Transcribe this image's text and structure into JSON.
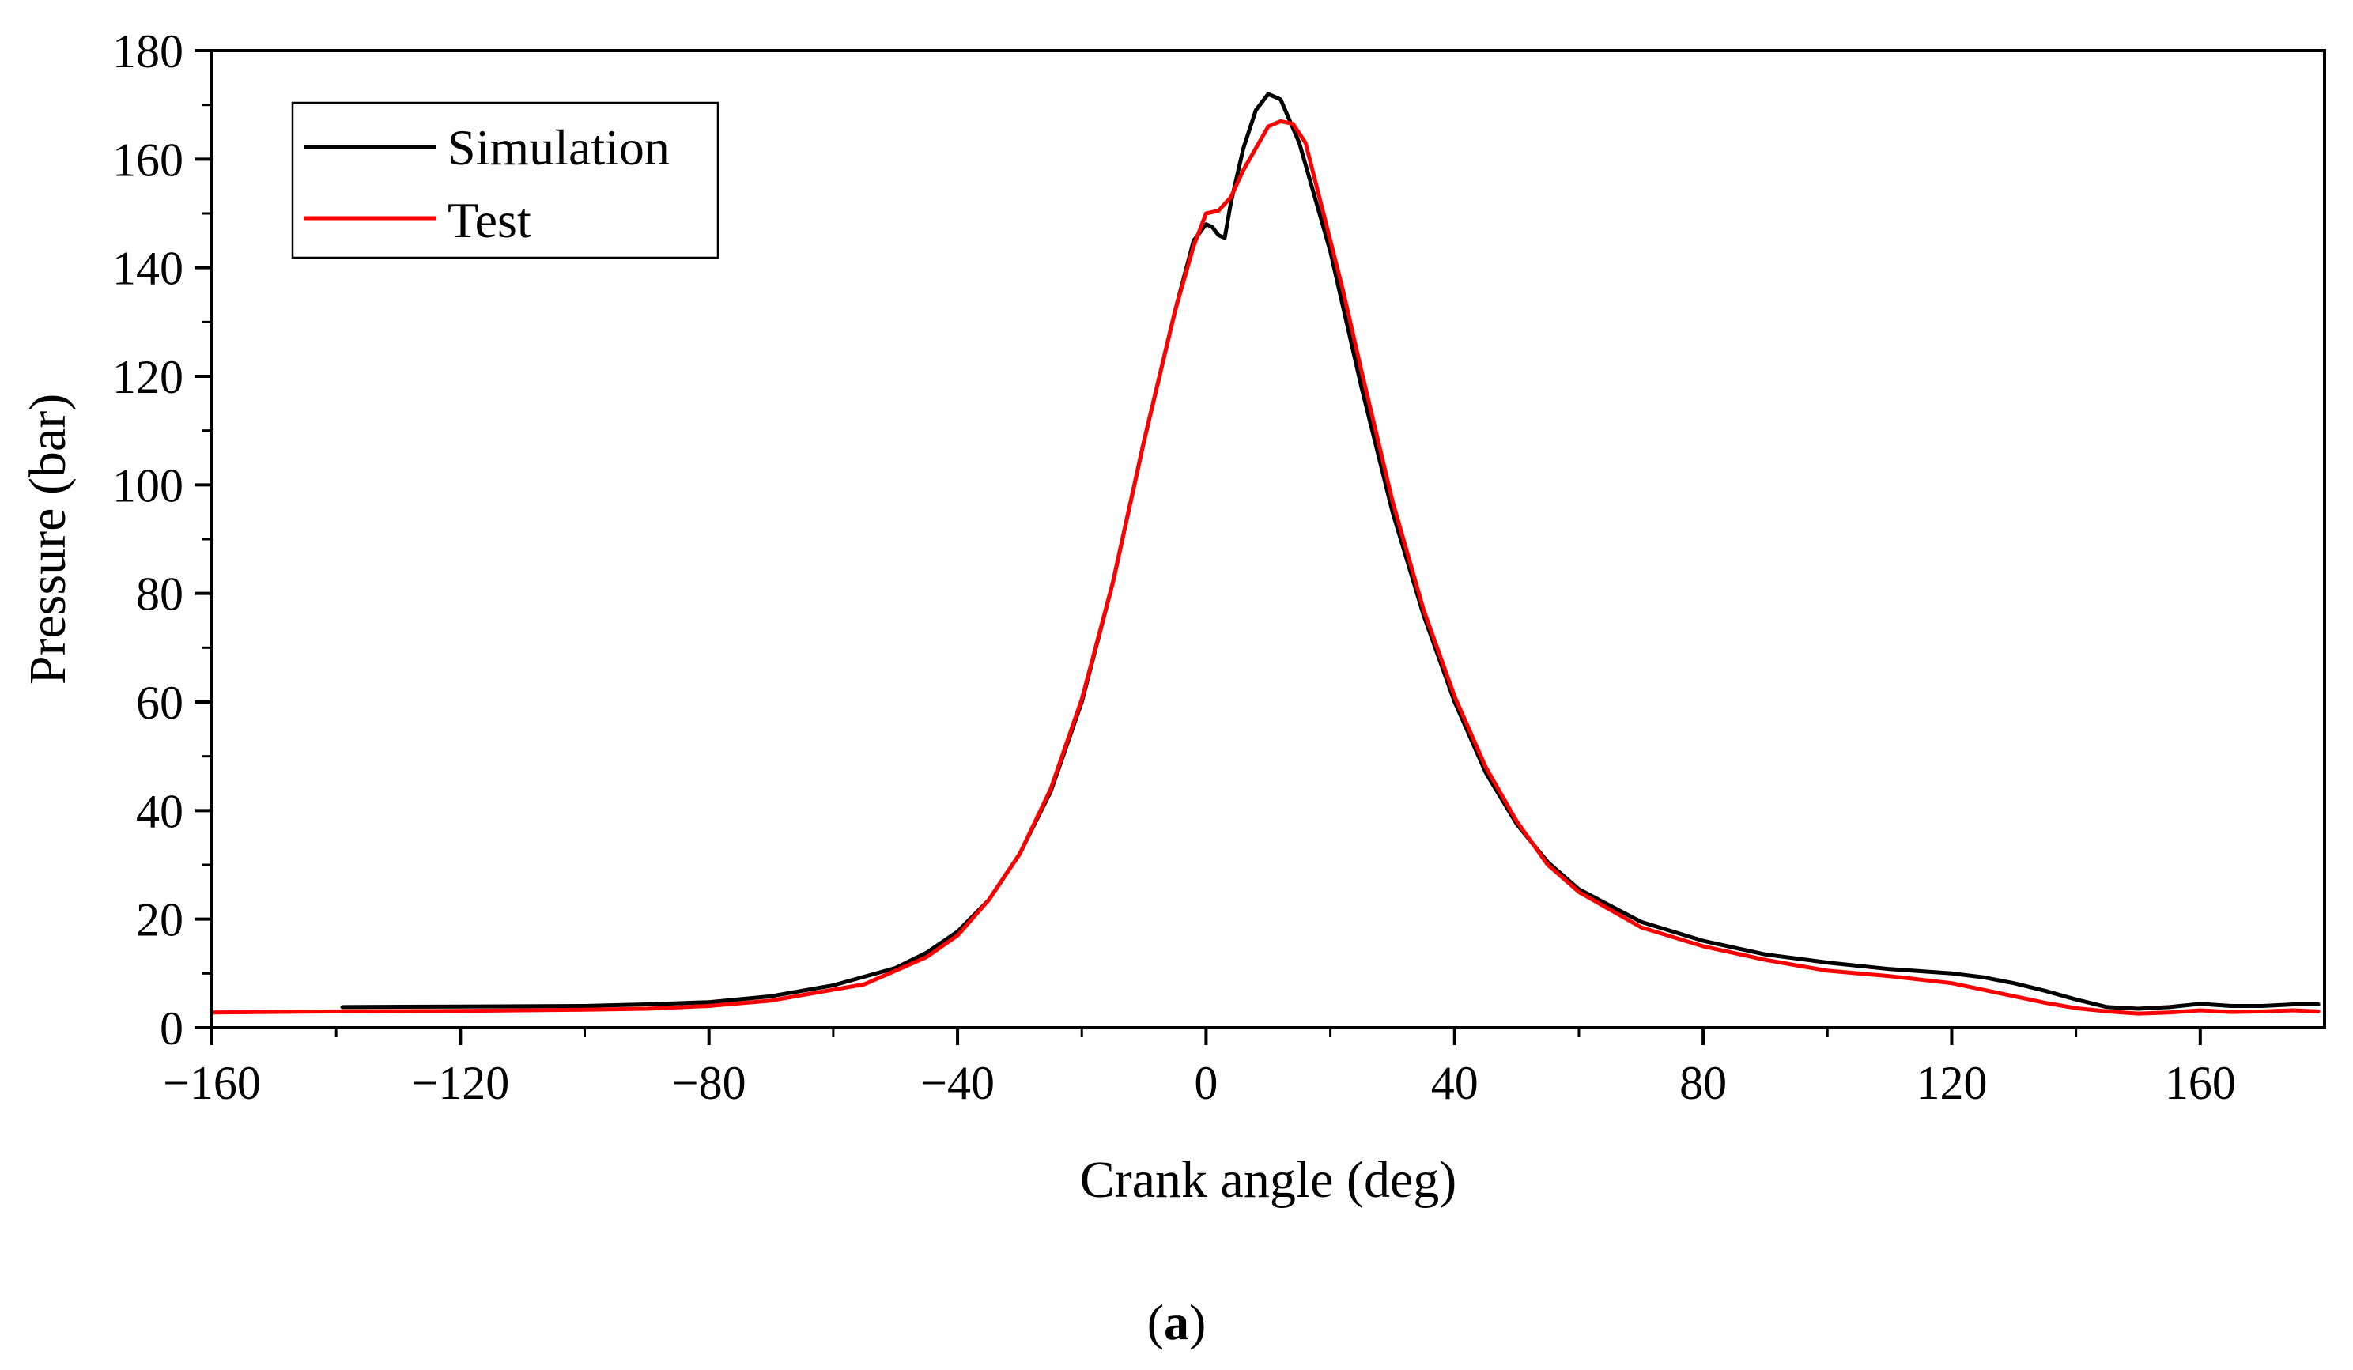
{
  "chart_data": {
    "type": "line",
    "title": "",
    "xlabel": "Crank angle (deg)",
    "ylabel": "Pressure (bar)",
    "xlim": [
      -160,
      180
    ],
    "ylim": [
      0,
      180
    ],
    "x_ticks": [
      -160,
      -120,
      -80,
      -40,
      0,
      40,
      80,
      120,
      160
    ],
    "x_tick_labels": [
      "−160",
      "−120",
      "−80",
      "−40",
      "0",
      "40",
      "80",
      "120",
      "160"
    ],
    "y_ticks": [
      0,
      20,
      40,
      60,
      80,
      100,
      120,
      140,
      160,
      180
    ],
    "y_tick_labels": [
      "0",
      "20",
      "40",
      "60",
      "80",
      "100",
      "120",
      "140",
      "160",
      "180"
    ],
    "grid": false,
    "legend_position": "top-left",
    "series": [
      {
        "name": "Simulation",
        "color": "#000000",
        "x": [
          -139,
          -120,
          -100,
          -90,
          -80,
          -70,
          -60,
          -50,
          -45,
          -40,
          -35,
          -30,
          -25,
          -20,
          -15,
          -10,
          -5,
          -2,
          0,
          1,
          2,
          3,
          4,
          6,
          8,
          10,
          12,
          15,
          20,
          25,
          30,
          35,
          40,
          45,
          50,
          55,
          60,
          70,
          80,
          90,
          100,
          110,
          120,
          125,
          130,
          135,
          140,
          145,
          150,
          155,
          160,
          165,
          170,
          175,
          179
        ],
        "y": [
          3.8,
          3.9,
          4.0,
          4.3,
          4.7,
          5.8,
          7.8,
          11.0,
          13.8,
          17.7,
          23.5,
          32.0,
          43.5,
          60.0,
          82.0,
          108.0,
          132.0,
          145.0,
          148.0,
          147.5,
          146.0,
          145.5,
          152.0,
          162.0,
          169.0,
          172.0,
          171.0,
          163.0,
          143.0,
          118.0,
          95.0,
          76.0,
          60.0,
          47.0,
          37.5,
          30.5,
          25.5,
          19.5,
          16.0,
          13.5,
          12.0,
          10.8,
          10.0,
          9.3,
          8.2,
          6.8,
          5.2,
          3.8,
          3.5,
          3.8,
          4.4,
          4.0,
          4.0,
          4.3,
          4.3
        ]
      },
      {
        "name": "Test",
        "color": "#ff0000",
        "x": [
          -160,
          -140,
          -120,
          -100,
          -90,
          -80,
          -70,
          -60,
          -55,
          -50,
          -45,
          -40,
          -35,
          -30,
          -25,
          -20,
          -15,
          -10,
          -5,
          -2,
          0,
          2,
          4,
          6,
          8,
          10,
          12,
          14,
          16,
          18,
          20,
          22,
          25,
          30,
          35,
          40,
          45,
          50,
          55,
          60,
          70,
          80,
          90,
          100,
          110,
          120,
          125,
          130,
          135,
          140,
          145,
          150,
          155,
          160,
          165,
          170,
          175,
          179
        ],
        "y": [
          2.8,
          3.0,
          3.1,
          3.3,
          3.5,
          4.0,
          5.0,
          7.0,
          8.0,
          10.5,
          13.0,
          17.0,
          23.5,
          32.0,
          44.0,
          60.5,
          82.0,
          108.0,
          132.0,
          144.0,
          150.0,
          150.5,
          153.0,
          158.0,
          162.0,
          166.0,
          167.0,
          166.5,
          163.0,
          154.0,
          145.0,
          136.0,
          121.0,
          97.0,
          77.0,
          61.0,
          48.0,
          38.0,
          30.0,
          25.0,
          18.5,
          15.0,
          12.5,
          10.5,
          9.5,
          8.2,
          7.0,
          5.8,
          4.6,
          3.6,
          3.0,
          2.6,
          2.8,
          3.2,
          2.9,
          3.0,
          3.2,
          3.0
        ]
      }
    ],
    "caption_open": "(",
    "caption_label": "a",
    "caption_close": ")"
  }
}
